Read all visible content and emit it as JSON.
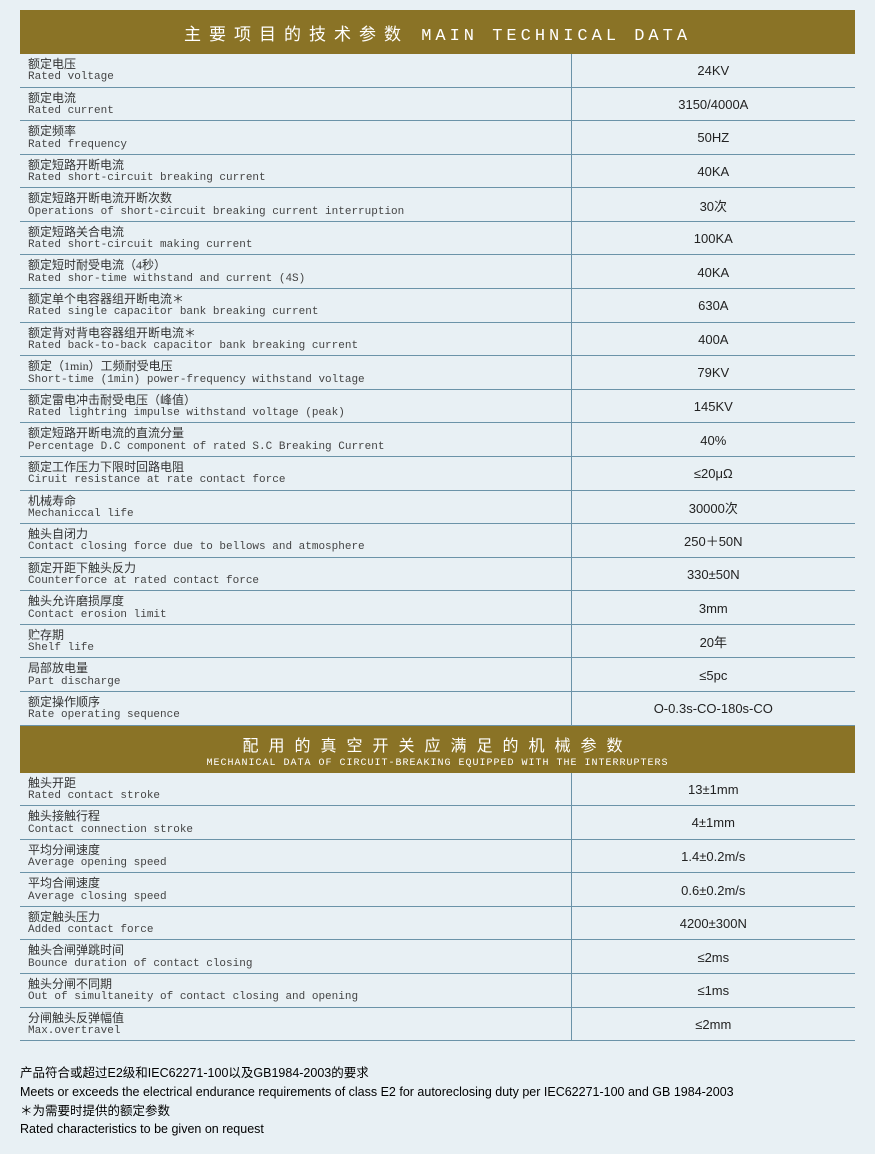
{
  "colors": {
    "header_bg": "#8a7326",
    "header_text": "#ffffff",
    "page_bg": "#e8f0f4",
    "border": "#6b93a8",
    "text": "#333333"
  },
  "fonts": {
    "cn": "SimSun",
    "en_mono": "Courier New",
    "value": "Arial"
  },
  "section1": {
    "title_cn": "主要项目的技术参数",
    "title_en": "MAIN TECHNICAL DATA",
    "rows": [
      {
        "cn": "额定电压",
        "en": "Rated voltage",
        "value": "24KV"
      },
      {
        "cn": "额定电流",
        "en": "Rated current",
        "value": "3150/4000A"
      },
      {
        "cn": "额定频率",
        "en": "Rated frequency",
        "value": "50HZ"
      },
      {
        "cn": "额定短路开断电流",
        "en": "Rated short-circuit breaking current",
        "value": "40KA"
      },
      {
        "cn": "额定短路开断电流开断次数",
        "en": "Operations of short-circuit breaking current interruption",
        "value": "30次"
      },
      {
        "cn": "额定短路关合电流",
        "en": "Rated short-circuit making current",
        "value": "100KA"
      },
      {
        "cn": "额定短时耐受电流（4秒）",
        "en": "Rated shor-time withstand and current (4S)",
        "value": "40KA"
      },
      {
        "cn": "额定单个电容器组开断电流＊",
        "en": "Rated single capacitor bank  breaking current",
        "value": "630A"
      },
      {
        "cn": "额定背对背电容器组开断电流＊",
        "en": "Rated back-to-back capacitor bank  breaking current",
        "value": "400A"
      },
      {
        "cn": "额定（1min）工频耐受电压",
        "en": "Short-time (1min) power-frequency withstand voltage",
        "value": "79KV"
      },
      {
        "cn": "额定雷电冲击耐受电压（峰值）",
        "en": "Rated lightring impulse withstand voltage (peak)",
        "value": "145KV"
      },
      {
        "cn": "额定短路开断电流的直流分量",
        "en": "Percentage D.C component of rated S.C Breaking Current",
        "value": "40%"
      },
      {
        "cn": "额定工作压力下限时回路电阻",
        "en": "Ciruit resistance at rate contact force",
        "value": "≤20μΩ"
      },
      {
        "cn": "机械寿命",
        "en": "Mechaniccal life",
        "value": "30000次"
      },
      {
        "cn": "触头自闭力",
        "en": "Contact closing force due to bellows and atmosphere",
        "value": "250＋50N"
      },
      {
        "cn": "额定开距下触头反力",
        "en": "Counterforce at rated contact force",
        "value": "330±50N"
      },
      {
        "cn": "触头允许磨损厚度",
        "en": "Contact erosion limit",
        "value": "3mm"
      },
      {
        "cn": "贮存期",
        "en": "Shelf life",
        "value": "20年"
      },
      {
        "cn": "局部放电量",
        "en": "Part discharge",
        "value": "≤5pc"
      },
      {
        "cn": "额定操作顺序",
        "en": "Rate operating sequence",
        "value": "O-0.3s-CO-180s-CO"
      }
    ]
  },
  "section2": {
    "title_cn": "配用的真空开关应满足的机械参数",
    "title_en": "MECHANICAL DATA OF CIRCUIT-BREAKING EQUIPPED WITH THE INTERRUPTERS",
    "rows": [
      {
        "cn": "触头开距",
        "en": "Rated contact stroke",
        "value": "13±1mm"
      },
      {
        "cn": "触头接触行程",
        "en": "Contact connection stroke",
        "value": "4±1mm"
      },
      {
        "cn": "平均分闸速度",
        "en": "Average opening speed",
        "value": "1.4±0.2m/s"
      },
      {
        "cn": "平均合闸速度",
        "en": "Average closing speed",
        "value": "0.6±0.2m/s"
      },
      {
        "cn": "额定触头压力",
        "en": "Added contact force",
        "value": "4200±300N"
      },
      {
        "cn": "触头合闸弹跳时间",
        "en": "Bounce duration of contact closing",
        "value": "≤2ms"
      },
      {
        "cn": "触头分闸不同期",
        "en": "Out of simultaneity of contact closing and opening",
        "value": "≤1ms"
      },
      {
        "cn": "分闸触头反弹幅值",
        "en": "Max.overtravel",
        "value": "≤2mm"
      }
    ]
  },
  "footer": {
    "line1": "产品符合或超过E2级和IEC62271-100以及GB1984-2003的要求",
    "line2": "Meets or exceeds the electrical endurance requirements of class E2 for autoreclosing duty per IEC62271-100 and GB 1984-2003",
    "line3": "＊为需要时提供的额定参数",
    "line4": "Rated characteristics to be given on request"
  }
}
